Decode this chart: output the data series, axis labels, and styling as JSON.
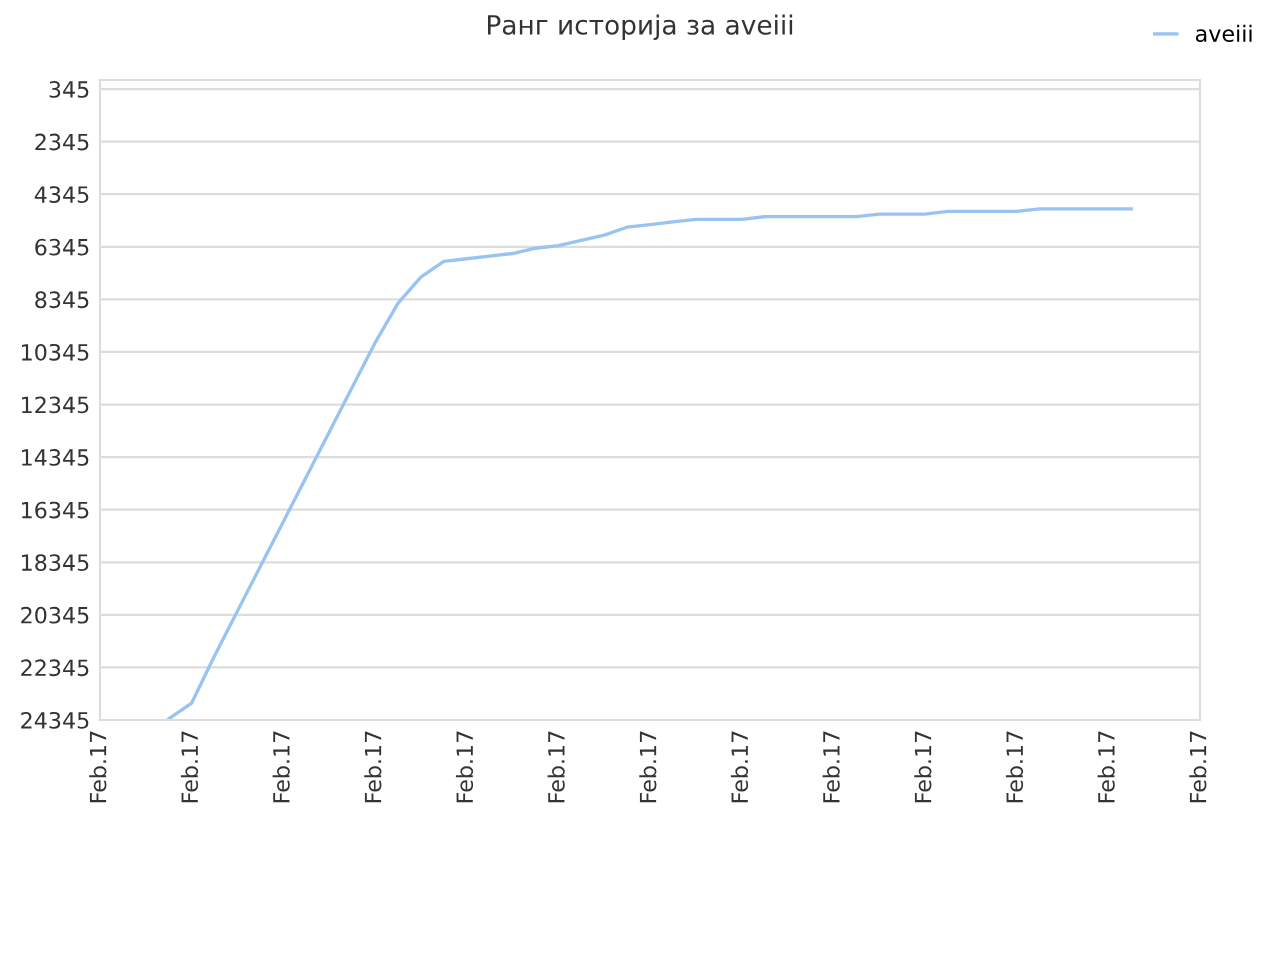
{
  "chart_data": {
    "type": "line",
    "title": "Ранг историја за aveiii",
    "categories": [
      "Feb.17",
      null,
      null,
      null,
      "Feb.17",
      null,
      null,
      null,
      "Feb.17",
      null,
      null,
      null,
      "Feb.17",
      null,
      null,
      null,
      "Feb.17",
      null,
      null,
      null,
      "Feb.17",
      null,
      null,
      null,
      "Feb.17",
      null,
      null,
      null,
      "Feb.17",
      null,
      null,
      null,
      "Feb.17",
      null,
      null,
      null,
      "Feb.17",
      null,
      null,
      null,
      "Feb.17",
      null,
      null,
      null,
      "Feb.17",
      null,
      null,
      null,
      "Feb.17"
    ],
    "series": [
      {
        "name": "aveiii",
        "color": "#99c4f2",
        "values": [
          null,
          null,
          null,
          24300,
          23700,
          21900,
          20200,
          18500,
          16800,
          15100,
          13400,
          11700,
          10000,
          8500,
          7500,
          6900,
          6800,
          6700,
          6600,
          6400,
          6300,
          6100,
          5900,
          5600,
          5500,
          5400,
          5300,
          5300,
          5300,
          5200,
          5200,
          5200,
          5200,
          5200,
          5100,
          5100,
          5100,
          5000,
          5000,
          5000,
          5000,
          4900,
          4900,
          4900,
          4900,
          4900,
          null,
          null,
          null
        ]
      }
    ],
    "ylim": [
      24345,
      0
    ],
    "yticks": [
      345,
      2345,
      4345,
      6345,
      8345,
      10345,
      12345,
      14345,
      16345,
      18345,
      20345,
      22345,
      24345
    ],
    "grid": "y",
    "legend": "top right",
    "marker": "none",
    "line_style": "solid"
  }
}
